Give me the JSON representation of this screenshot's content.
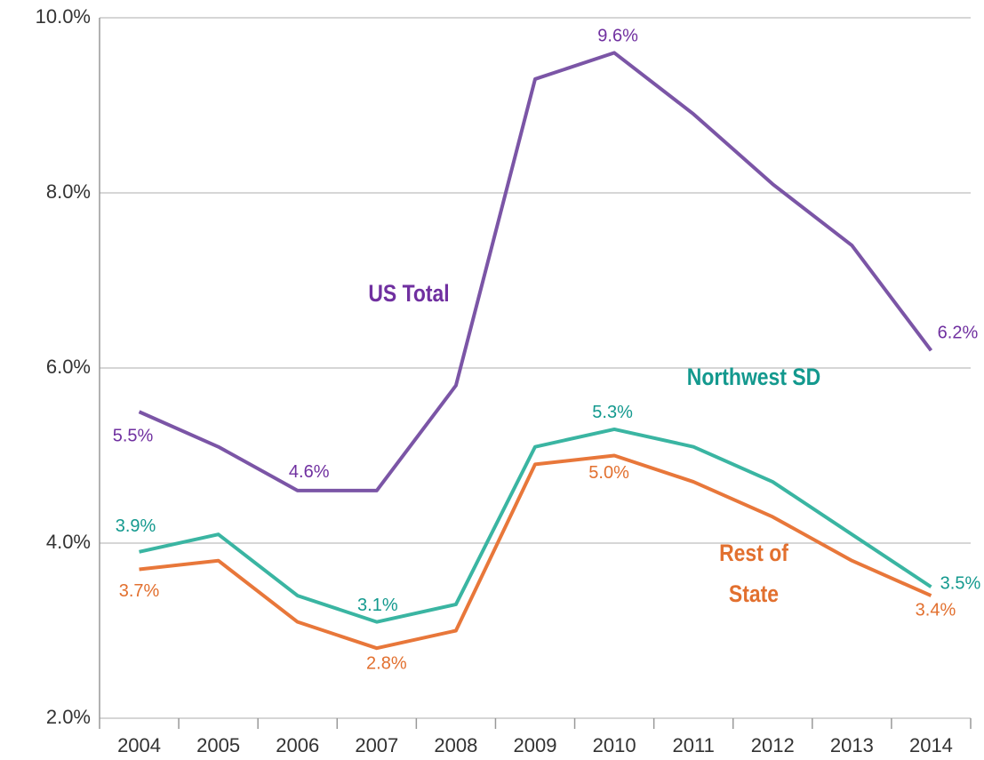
{
  "chart_data": {
    "type": "line",
    "categories": [
      "2004",
      "2005",
      "2006",
      "2007",
      "2008",
      "2009",
      "2010",
      "2011",
      "2012",
      "2013",
      "2014"
    ],
    "series": [
      {
        "name": "US Total",
        "color": "#7b55a6",
        "label_color": "#7030a0",
        "values": [
          5.5,
          5.1,
          4.6,
          4.6,
          5.8,
          9.3,
          9.6,
          8.9,
          8.1,
          7.4,
          6.2
        ],
        "value_labels": [
          "5.5%",
          null,
          "4.6%",
          null,
          null,
          null,
          "9.6%",
          null,
          null,
          null,
          "6.2%"
        ]
      },
      {
        "name": "Northwest SD",
        "color": "#3ab5a2",
        "label_color": "#13998e",
        "values": [
          3.9,
          4.1,
          3.4,
          3.1,
          3.3,
          5.1,
          5.3,
          5.1,
          4.7,
          4.1,
          3.5
        ],
        "value_labels": [
          "3.9%",
          null,
          null,
          "3.1%",
          null,
          null,
          "5.3%",
          null,
          null,
          null,
          "3.5%"
        ]
      },
      {
        "name": "Rest of State",
        "color": "#e8773a",
        "label_color": "#e2702f",
        "values": [
          3.7,
          3.8,
          3.1,
          2.8,
          3.0,
          4.9,
          5.0,
          4.7,
          4.3,
          3.8,
          3.4
        ],
        "value_labels": [
          "3.7%",
          null,
          null,
          "2.8%",
          null,
          null,
          "5.0%",
          null,
          null,
          null,
          "3.4%"
        ]
      }
    ],
    "ylim": [
      2,
      10
    ],
    "yticks": [
      {
        "value": 2,
        "label": "2.0%"
      },
      {
        "value": 4,
        "label": "4.0%"
      },
      {
        "value": 6,
        "label": "6.0%"
      },
      {
        "value": 8,
        "label": "8.0%"
      },
      {
        "value": 10,
        "label": "10.0%"
      }
    ],
    "grid": true
  }
}
